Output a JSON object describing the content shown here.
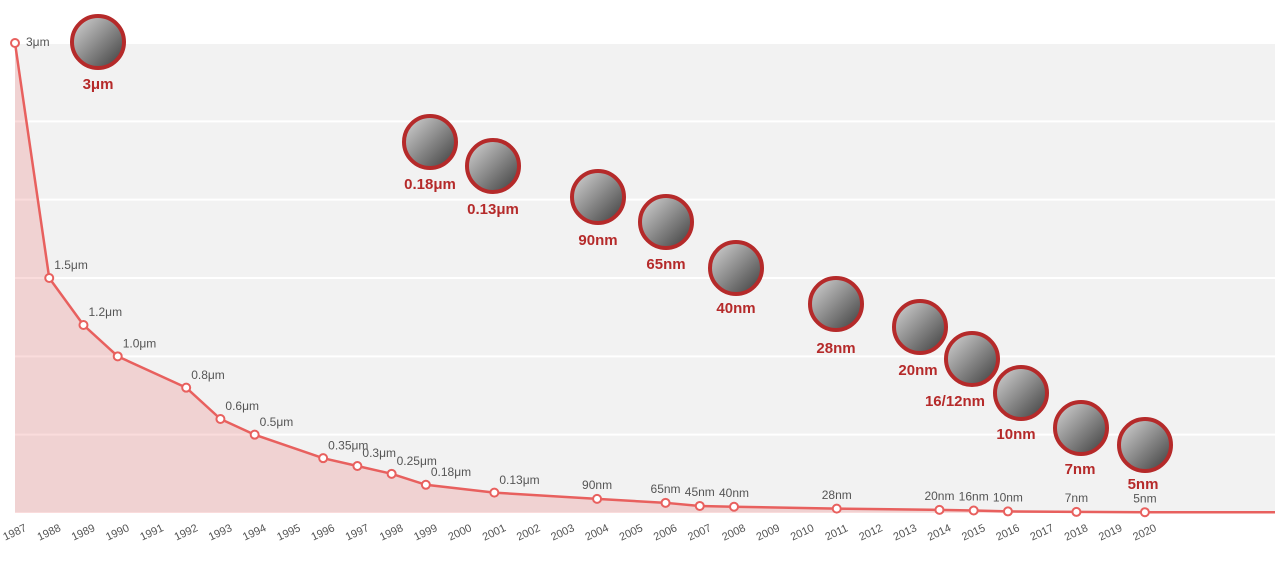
{
  "chart_data": {
    "type": "line",
    "x": [
      1987,
      1988,
      1989,
      1990,
      1992,
      1993,
      1994,
      1996,
      1997,
      1998,
      1999,
      2001,
      2004,
      2006,
      2007,
      2008,
      2011,
      2014,
      2015,
      2016,
      2018,
      2020
    ],
    "values": [
      3,
      1.5,
      1.2,
      1.0,
      0.8,
      0.6,
      0.5,
      0.35,
      0.3,
      0.25,
      0.18,
      0.13,
      0.09,
      0.065,
      0.045,
      0.04,
      0.028,
      0.02,
      0.016,
      0.01,
      0.007,
      0.005
    ],
    "value_labels": [
      "3μm",
      "1.5μm",
      "1.2μm",
      "1.0μm",
      "0.8μm",
      "0.6μm",
      "0.5μm",
      "0.35μm",
      "0.3μm",
      "0.25μm",
      "0.18μm",
      "0.13μm",
      "90nm",
      "65nm",
      "45nm",
      "40nm",
      "28nm",
      "20nm",
      "16nm",
      "10nm",
      "7nm",
      "5nm"
    ],
    "color": "#e8605e",
    "xlim": [
      1987,
      2023.8
    ],
    "xticks": [
      1987,
      1988,
      1989,
      1990,
      1991,
      1992,
      1993,
      1994,
      1995,
      1996,
      1997,
      1998,
      1999,
      2000,
      2001,
      2002,
      2003,
      2004,
      2005,
      2006,
      2007,
      2008,
      2009,
      2010,
      2011,
      2012,
      2013,
      2014,
      2015,
      2016,
      2017,
      2018,
      2019,
      2020
    ],
    "ylim": [
      0,
      3
    ],
    "yticks": [
      0,
      0.5,
      1,
      1.5,
      2,
      2.5,
      3
    ],
    "grid": true,
    "image_labels": [
      "3μm",
      "0.18μm",
      "0.13μm",
      "90nm",
      "65nm",
      "40nm",
      "28nm",
      "20nm",
      "16/12nm",
      "10nm",
      "7nm",
      "5nm"
    ]
  }
}
